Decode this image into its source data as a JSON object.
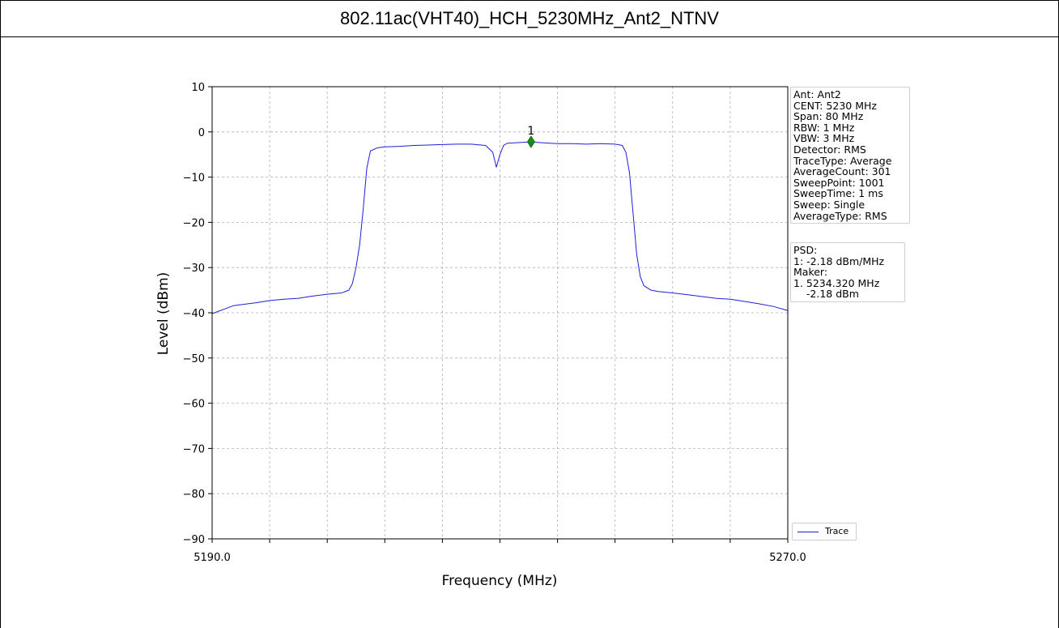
{
  "window": {
    "title": "802.11ac(VHT40)_HCH_5230MHz_Ant2_NTNV"
  },
  "info_box": {
    "lines": [
      "Ant: Ant2",
      "CENT: 5230 MHz",
      "Span: 80 MHz",
      "RBW: 1 MHz",
      "VBW: 3 MHz",
      "Detector: RMS",
      "TraceType: Average",
      "AverageCount: 301",
      "SweepPoint: 1001",
      "SweepTime: 1 ms",
      "Sweep: Single",
      "AverageType: RMS"
    ]
  },
  "psd_box": {
    "lines": [
      "PSD:",
      "1: -2.18 dBm/MHz",
      "Maker:",
      "1. 5234.320 MHz",
      "    -2.18 dBm"
    ]
  },
  "legend": {
    "label": "Trace"
  },
  "colors": {
    "trace": "#1f1fd8",
    "marker": "#1a8a1a",
    "grid": "#b0b0b0"
  },
  "chart_data": {
    "type": "line",
    "xlabel": "Frequency (MHz)",
    "ylabel": "Level (dBm)",
    "xlim": [
      5190,
      5270
    ],
    "ylim": [
      -90,
      10
    ],
    "x_tick_labels": [
      "5190.0",
      "5270.0"
    ],
    "x_grid_step": 8,
    "y_ticks": [
      10,
      0,
      -10,
      -20,
      -30,
      -40,
      -50,
      -60,
      -70,
      -80,
      -90
    ],
    "grid": true,
    "legend_position": "bottom-right-outside",
    "series": [
      {
        "name": "Trace",
        "x": [
          5190,
          5191,
          5192,
          5193,
          5194,
          5196,
          5198,
          5200,
          5202,
          5204,
          5206,
          5208,
          5209,
          5209.5,
          5210,
          5210.5,
          5211,
          5211.5,
          5212,
          5213,
          5214,
          5216,
          5218,
          5220,
          5222,
          5224,
          5226,
          5228,
          5229,
          5229.5,
          5230,
          5230.5,
          5231,
          5232,
          5234.32,
          5236,
          5238,
          5240,
          5242,
          5244,
          5246,
          5247,
          5247.5,
          5248,
          5248.5,
          5249,
          5249.5,
          5250,
          5251,
          5252,
          5254,
          5256,
          5258,
          5260,
          5262,
          5264,
          5266,
          5268,
          5270
        ],
        "y": [
          -40.2,
          -39.6,
          -39.0,
          -38.4,
          -38.2,
          -37.8,
          -37.3,
          -37.0,
          -36.8,
          -36.3,
          -35.9,
          -35.6,
          -35.0,
          -33.5,
          -30.0,
          -25.0,
          -17.0,
          -8.0,
          -4.2,
          -3.5,
          -3.3,
          -3.2,
          -3.0,
          -2.9,
          -2.8,
          -2.7,
          -2.7,
          -3.0,
          -4.5,
          -7.8,
          -5.0,
          -3.0,
          -2.5,
          -2.4,
          -2.2,
          -2.4,
          -2.6,
          -2.6,
          -2.7,
          -2.6,
          -2.7,
          -3.0,
          -4.5,
          -9.0,
          -18.0,
          -27.0,
          -32.0,
          -34.0,
          -35.0,
          -35.3,
          -35.6,
          -36.0,
          -36.4,
          -36.8,
          -37.0,
          -37.5,
          -38.0,
          -38.6,
          -39.5
        ]
      }
    ],
    "markers": [
      {
        "label": "1",
        "x": 5234.32,
        "y": -2.18
      }
    ]
  }
}
